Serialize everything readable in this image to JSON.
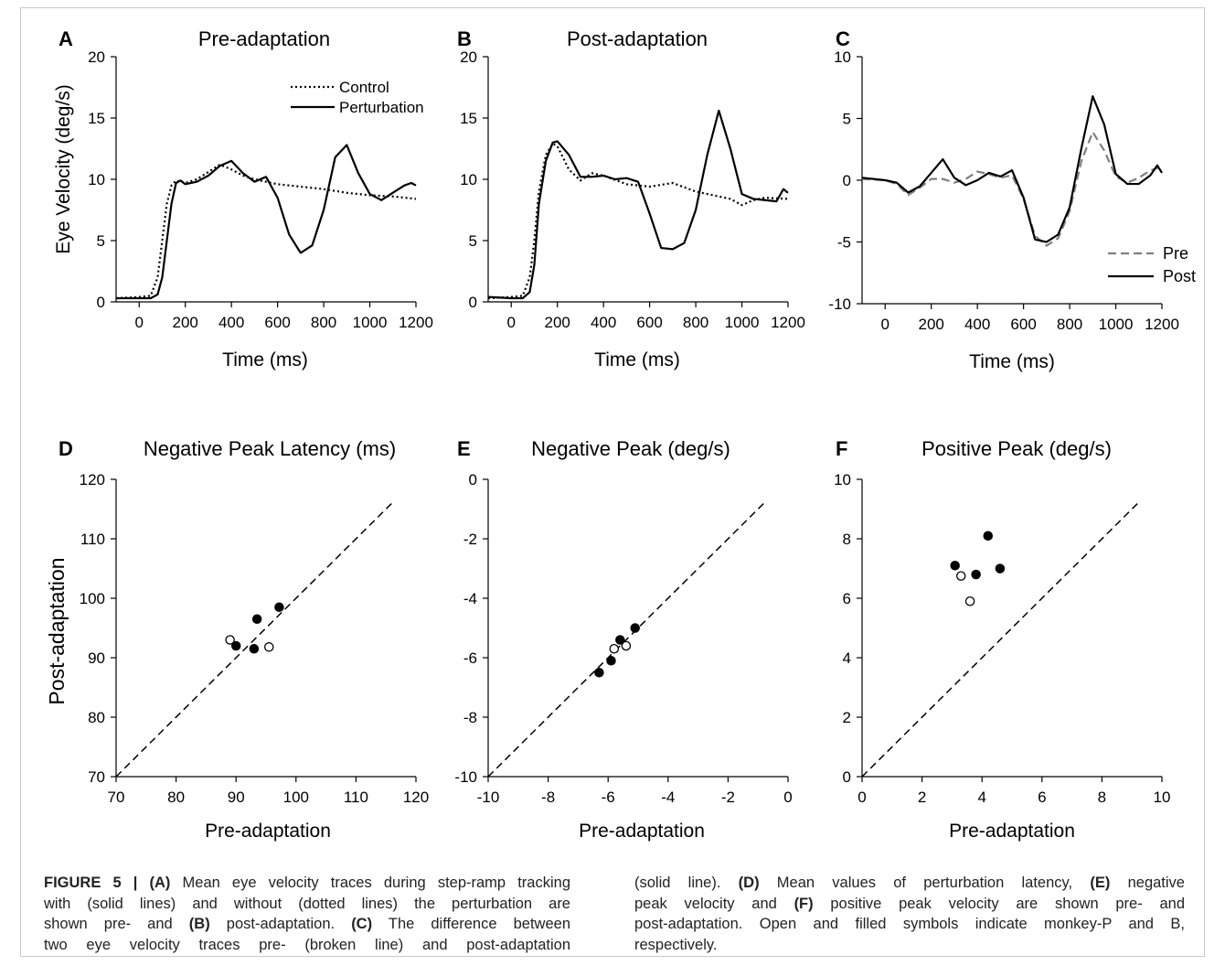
{
  "panels_top": [
    {
      "letter": "A",
      "title": "Pre-adaptation",
      "ylabel": "Eye Velocity (deg/s)",
      "xlabel": "Time (ms)",
      "xticks": [
        "0",
        "200",
        "400",
        "600",
        "800",
        "1000",
        "1200"
      ],
      "yticks": [
        "0",
        "5",
        "10",
        "15",
        "20"
      ],
      "legend": [
        "Control",
        "Perturbation"
      ]
    },
    {
      "letter": "B",
      "title": "Post-adaptation",
      "ylabel": "",
      "xlabel": "Time (ms)",
      "xticks": [
        "0",
        "200",
        "400",
        "600",
        "800",
        "1000",
        "1200"
      ],
      "yticks": [
        "0",
        "5",
        "10",
        "15",
        "20"
      ],
      "legend": []
    },
    {
      "letter": "C",
      "title": "",
      "ylabel": "",
      "xlabel": "Time (ms)",
      "xticks": [
        "0",
        "200",
        "400",
        "600",
        "800",
        "1000",
        "1200"
      ],
      "yticks": [
        "-10",
        "-5",
        "0",
        "5",
        "10"
      ],
      "legend": [
        "Pre",
        "Post"
      ]
    }
  ],
  "panels_bottom": [
    {
      "letter": "D",
      "title": "Negative Peak Latency (ms)",
      "ylabel": "Post-adaptation",
      "xlabel": "Pre-adaptation",
      "xticks": [
        "70",
        "80",
        "90",
        "100",
        "110",
        "120"
      ],
      "yticks": [
        "70",
        "80",
        "90",
        "100",
        "110",
        "120"
      ]
    },
    {
      "letter": "E",
      "title": "Negative Peak (deg/s)",
      "ylabel": "",
      "xlabel": "Pre-adaptation",
      "xticks": [
        "-10",
        "-8",
        "-6",
        "-4",
        "-2",
        "0"
      ],
      "yticks": [
        "-10",
        "-8",
        "-6",
        "-4",
        "-2",
        "0"
      ]
    },
    {
      "letter": "F",
      "title": "Positive Peak (deg/s)",
      "ylabel": "",
      "xlabel": "Pre-adaptation",
      "xticks": [
        "0",
        "2",
        "4",
        "6",
        "8",
        "10"
      ],
      "yticks": [
        "0",
        "2",
        "4",
        "6",
        "8",
        "10"
      ]
    }
  ],
  "colors": {
    "pre_dashed": "#7f7f7f",
    "line": "#000000"
  },
  "chart_data": [
    {
      "panel": "A",
      "type": "line",
      "xlim": [
        -100,
        1200
      ],
      "ylim": [
        0,
        20
      ],
      "series": [
        {
          "name": "Control",
          "style": "dotted",
          "x": [
            -100,
            0,
            50,
            80,
            100,
            120,
            140,
            160,
            200,
            250,
            300,
            350,
            400,
            450,
            500,
            550,
            600,
            700,
            800,
            900,
            1000,
            1100,
            1200
          ],
          "y": [
            0.3,
            0.4,
            0.5,
            2,
            5,
            8,
            9.5,
            9.9,
            9.7,
            10,
            10.6,
            11.2,
            10.8,
            10.3,
            10,
            9.8,
            9.6,
            9.4,
            9.2,
            8.9,
            8.7,
            8.6,
            8.4
          ]
        },
        {
          "name": "Perturbation",
          "style": "solid",
          "x": [
            -100,
            0,
            50,
            80,
            100,
            120,
            140,
            160,
            180,
            200,
            250,
            300,
            350,
            400,
            450,
            500,
            550,
            600,
            650,
            700,
            750,
            800,
            850,
            900,
            950,
            1000,
            1050,
            1100,
            1150,
            1180,
            1200
          ],
          "y": [
            0.3,
            0.3,
            0.3,
            0.6,
            2,
            5,
            8,
            9.7,
            9.9,
            9.6,
            9.8,
            10.3,
            11.1,
            11.5,
            10.5,
            9.8,
            10.2,
            8.5,
            5.5,
            4,
            4.6,
            7.5,
            11.8,
            12.8,
            10.5,
            8.8,
            8.3,
            8.9,
            9.5,
            9.7,
            9.5
          ]
        }
      ]
    },
    {
      "panel": "B",
      "type": "line",
      "xlim": [
        -100,
        1200
      ],
      "ylim": [
        0,
        20
      ],
      "series": [
        {
          "name": "",
          "style": "dotted",
          "x": [
            -100,
            0,
            50,
            80,
            100,
            120,
            150,
            180,
            200,
            250,
            300,
            350,
            400,
            500,
            600,
            700,
            800,
            850,
            900,
            950,
            1000,
            1050,
            1100,
            1200
          ],
          "y": [
            0.3,
            0.4,
            0.5,
            2,
            5,
            9,
            12,
            12.9,
            12.7,
            10.8,
            9.9,
            10.5,
            10.3,
            9.6,
            9.4,
            9.7,
            9,
            8.8,
            8.6,
            8.4,
            7.9,
            8.3,
            8.5,
            8.4
          ]
        },
        {
          "name": "",
          "style": "solid",
          "x": [
            -100,
            0,
            50,
            80,
            100,
            120,
            150,
            180,
            200,
            250,
            300,
            350,
            400,
            450,
            500,
            550,
            600,
            650,
            700,
            750,
            800,
            850,
            900,
            950,
            1000,
            1050,
            1100,
            1150,
            1180,
            1200
          ],
          "y": [
            0.4,
            0.3,
            0.3,
            0.8,
            3,
            8,
            11.5,
            13,
            13.1,
            12,
            10.2,
            10.2,
            10.3,
            10,
            10.1,
            9.8,
            7.2,
            4.4,
            4.3,
            4.8,
            7.5,
            12,
            15.6,
            12.5,
            8.8,
            8.4,
            8.3,
            8.2,
            9.2,
            8.9
          ]
        }
      ]
    },
    {
      "panel": "C",
      "type": "line",
      "xlim": [
        -100,
        1200
      ],
      "ylim": [
        -10,
        10
      ],
      "series": [
        {
          "name": "Pre",
          "style": "dashed",
          "x": [
            -100,
            0,
            50,
            100,
            150,
            200,
            250,
            300,
            350,
            400,
            450,
            500,
            550,
            600,
            650,
            700,
            750,
            800,
            850,
            900,
            950,
            1000,
            1050,
            1100,
            1150,
            1200
          ],
          "y": [
            0.1,
            0,
            -0.3,
            -1.2,
            -0.6,
            0.1,
            0.1,
            -0.2,
            0.1,
            0.7,
            0.5,
            0.2,
            0.4,
            -1.5,
            -4.5,
            -5.3,
            -4.7,
            -2.5,
            1.5,
            3.9,
            2.4,
            0.3,
            -0.2,
            0.2,
            0.8,
            1.1
          ]
        },
        {
          "name": "Post",
          "style": "solid",
          "x": [
            -100,
            0,
            50,
            100,
            150,
            200,
            250,
            300,
            350,
            400,
            450,
            500,
            550,
            600,
            650,
            700,
            750,
            800,
            850,
            900,
            950,
            1000,
            1050,
            1100,
            1150,
            1180,
            1200
          ],
          "y": [
            0.2,
            0,
            -0.2,
            -1,
            -0.5,
            0.6,
            1.7,
            0.2,
            -0.4,
            0,
            0.6,
            0.3,
            0.8,
            -1.4,
            -4.8,
            -5,
            -4.4,
            -2.2,
            2.5,
            6.8,
            4.5,
            0.5,
            -0.3,
            -0.3,
            0.4,
            1.2,
            0.6
          ]
        }
      ]
    },
    {
      "panel": "D",
      "type": "scatter",
      "xlim": [
        70,
        120
      ],
      "ylim": [
        70,
        120
      ],
      "series": [
        {
          "name": "",
          "marker": "open",
          "x": [
            89,
            95.5
          ],
          "y": [
            93,
            91.8
          ]
        },
        {
          "name": "",
          "marker": "filled",
          "x": [
            90,
            93,
            93.5,
            97.2
          ],
          "y": [
            92,
            91.5,
            96.5,
            98.5
          ]
        }
      ]
    },
    {
      "panel": "E",
      "type": "scatter",
      "xlim": [
        -10,
        0
      ],
      "ylim": [
        -10,
        0
      ],
      "series": [
        {
          "name": "",
          "marker": "open",
          "x": [
            -5.8,
            -5.4
          ],
          "y": [
            -5.7,
            -5.6
          ]
        },
        {
          "name": "",
          "marker": "filled",
          "x": [
            -6.3,
            -5.9,
            -5.6,
            -5.1
          ],
          "y": [
            -6.5,
            -6.1,
            -5.4,
            -5
          ]
        }
      ]
    },
    {
      "panel": "F",
      "type": "scatter",
      "xlim": [
        0,
        10
      ],
      "ylim": [
        0,
        10
      ],
      "series": [
        {
          "name": "",
          "marker": "open",
          "x": [
            3.3,
            3.6
          ],
          "y": [
            6.75,
            5.9
          ]
        },
        {
          "name": "",
          "marker": "filled",
          "x": [
            3.1,
            3.8,
            4.2,
            4.6
          ],
          "y": [
            7.1,
            6.8,
            8.1,
            7
          ]
        }
      ]
    }
  ],
  "caption": {
    "left_lines": [
      [
        "FIGURE 5 | (A)",
        " Mean eye velocity traces during step-ramp tracking"
      ],
      [
        "",
        "with (solid lines) and without (dotted lines) the perturbation are"
      ],
      [
        "",
        "shown pre- and "
      ],
      [
        "",
        "two eye velocity traces pre- (broken line) and post-adaptation"
      ]
    ],
    "left_line3_b": "(B)",
    "left_line3_c": " post-adaptation. ",
    "left_line3_d": "(C)",
    "left_line3_e": " The difference between",
    "right_line1_a": "(solid line). ",
    "right_line1_b": "(D)",
    "right_line1_c": " Mean values of perturbation latency, ",
    "right_line1_d": "(E)",
    "right_line1_e": " negative",
    "right_line2_a": "peak velocity and ",
    "right_line2_b": "(F)",
    "right_line2_c": " positive peak velocity are shown pre- and",
    "right_line3": "post-adaptation. Open and filled symbols indicate monkey-P and B,",
    "right_line4": "respectively."
  }
}
